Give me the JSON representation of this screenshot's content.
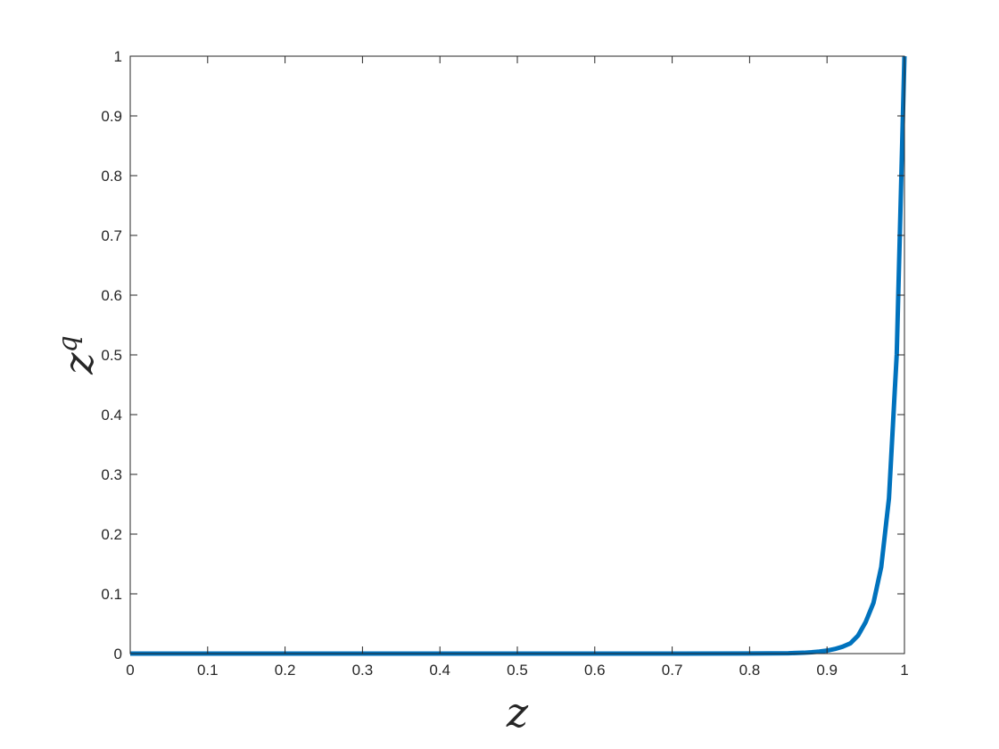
{
  "chart_data": {
    "type": "line",
    "title": "",
    "xlabel": "z",
    "ylabel_base": "z",
    "ylabel_superscript": "q",
    "xlim": [
      0,
      1
    ],
    "ylim": [
      0,
      1
    ],
    "x_ticks": [
      "0",
      "0.1",
      "0.2",
      "0.3",
      "0.4",
      "0.5",
      "0.6",
      "0.7",
      "0.8",
      "0.9",
      "1"
    ],
    "y_ticks": [
      "0",
      "0.1",
      "0.2",
      "0.3",
      "0.4",
      "0.5",
      "0.6",
      "0.7",
      "0.8",
      "0.9",
      "1"
    ],
    "grid": false,
    "series": [
      {
        "color": "#0072BD",
        "x": [
          0,
          0.1,
          0.2,
          0.3,
          0.4,
          0.5,
          0.6,
          0.7,
          0.8,
          0.85,
          0.87,
          0.88,
          0.89,
          0.9,
          0.91,
          0.92,
          0.93,
          0.94,
          0.95,
          0.96,
          0.97,
          0.98,
          0.99,
          1.0
        ],
        "y": [
          0,
          0,
          0,
          0,
          0,
          0,
          0,
          0,
          0.0001,
          0.0006,
          0.0014,
          0.0022,
          0.0033,
          0.005,
          0.0077,
          0.0115,
          0.017,
          0.03,
          0.053,
          0.085,
          0.145,
          0.26,
          0.5,
          1.0
        ]
      }
    ]
  }
}
